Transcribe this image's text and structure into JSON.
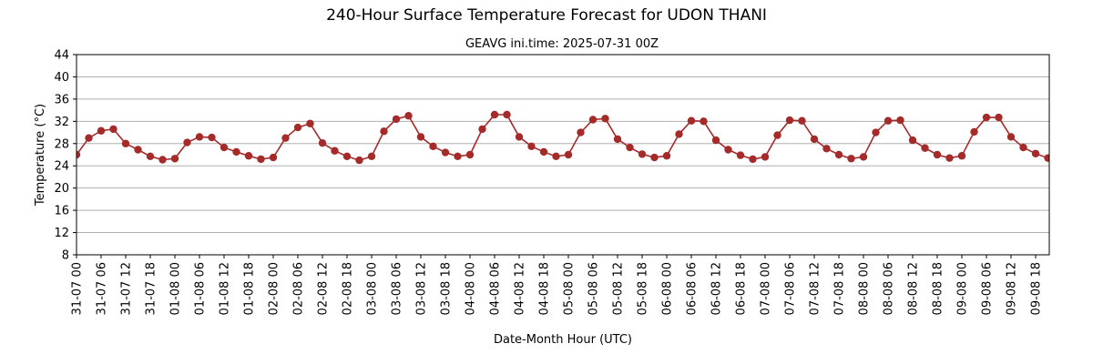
{
  "chart_data": {
    "type": "line",
    "title": "240-Hour Surface Temperature Forecast for UDON THANI",
    "subtitle": "GEAVG ini.time: 2025-07-31 00Z",
    "xlabel": "Date-Month Hour (UTC)",
    "ylabel": "Temperature (°C)",
    "ylim": [
      8,
      44
    ],
    "yticks": [
      8,
      12,
      16,
      20,
      24,
      28,
      32,
      36,
      40,
      44
    ],
    "grid": "horizontal",
    "line_color": "#a52a2a",
    "categories": [
      "31-07 00",
      "31-07 03",
      "31-07 06",
      "31-07 09",
      "31-07 12",
      "31-07 15",
      "31-07 18",
      "31-07 21",
      "01-08 00",
      "01-08 03",
      "01-08 06",
      "01-08 09",
      "01-08 12",
      "01-08 15",
      "01-08 18",
      "01-08 21",
      "02-08 00",
      "02-08 03",
      "02-08 06",
      "02-08 09",
      "02-08 12",
      "02-08 15",
      "02-08 18",
      "02-08 21",
      "03-08 00",
      "03-08 03",
      "03-08 06",
      "03-08 09",
      "03-08 12",
      "03-08 15",
      "03-08 18",
      "03-08 21",
      "04-08 00",
      "04-08 03",
      "04-08 06",
      "04-08 09",
      "04-08 12",
      "04-08 15",
      "04-08 18",
      "04-08 21",
      "05-08 00",
      "05-08 03",
      "05-08 06",
      "05-08 09",
      "05-08 12",
      "05-08 15",
      "05-08 18",
      "05-08 21",
      "06-08 00",
      "06-08 03",
      "06-08 06",
      "06-08 09",
      "06-08 12",
      "06-08 15",
      "06-08 18",
      "06-08 21",
      "07-08 00",
      "07-08 03",
      "07-08 06",
      "07-08 09",
      "07-08 12",
      "07-08 15",
      "07-08 18",
      "07-08 21",
      "08-08 00",
      "08-08 03",
      "08-08 06",
      "08-08 09",
      "08-08 12",
      "08-08 15",
      "08-08 18",
      "08-08 21",
      "09-08 00",
      "09-08 03",
      "09-08 06",
      "09-08 09",
      "09-08 12",
      "09-08 15",
      "09-08 18",
      "09-08 21"
    ],
    "tick_labels": [
      "31-07 00",
      "31-07 06",
      "31-07 12",
      "31-07 18",
      "01-08 00",
      "01-08 06",
      "01-08 12",
      "01-08 18",
      "02-08 00",
      "02-08 06",
      "02-08 12",
      "02-08 18",
      "03-08 00",
      "03-08 06",
      "03-08 12",
      "03-08 18",
      "04-08 00",
      "04-08 06",
      "04-08 12",
      "04-08 18",
      "05-08 00",
      "05-08 06",
      "05-08 12",
      "05-08 18",
      "06-08 00",
      "06-08 06",
      "06-08 12",
      "06-08 18",
      "07-08 00",
      "07-08 06",
      "07-08 12",
      "07-08 18",
      "08-08 00",
      "08-08 06",
      "08-08 12",
      "08-08 18",
      "09-08 00",
      "09-08 06",
      "09-08 12",
      "09-08 18"
    ],
    "series": [
      {
        "values": [
          26.0,
          29.0,
          30.3,
          30.6,
          28.0,
          26.9,
          25.7,
          25.1,
          25.3,
          28.2,
          29.2,
          29.1,
          27.3,
          26.5,
          25.8,
          25.2,
          25.5,
          29.0,
          30.9,
          31.6,
          28.1,
          26.7,
          25.7,
          25.0,
          25.7,
          30.2,
          32.4,
          33.0,
          29.2,
          27.5,
          26.4,
          25.7,
          26.0,
          30.6,
          33.2,
          33.2,
          29.2,
          27.5,
          26.5,
          25.7,
          26.0,
          30.0,
          32.3,
          32.5,
          28.8,
          27.3,
          26.1,
          25.5,
          25.8,
          29.7,
          32.1,
          32.0,
          28.6,
          26.9,
          25.9,
          25.2,
          25.6,
          29.5,
          32.2,
          32.1,
          28.8,
          27.1,
          26.0,
          25.3,
          25.6,
          30.0,
          32.1,
          32.2,
          28.6,
          27.2,
          26.0,
          25.4,
          25.8,
          30.1,
          32.7,
          32.7,
          29.2,
          27.3,
          26.2,
          25.4
        ]
      }
    ]
  }
}
